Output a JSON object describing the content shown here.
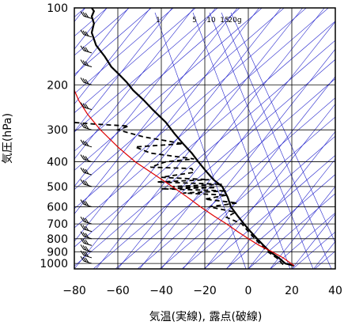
{
  "chart_data": {
    "type": "line",
    "title": "",
    "xlabel": "気温(実線), 露点(破線)",
    "ylabel": "気圧(hPa)",
    "x_ticks": [
      -80,
      -60,
      -40,
      -20,
      0,
      20,
      40
    ],
    "y_ticks": [
      100,
      200,
      300,
      400,
      500,
      600,
      700,
      800,
      900,
      1000
    ],
    "xlim": [
      -80,
      40
    ],
    "ylim": [
      1050,
      100
    ],
    "y_scale": "log",
    "mixing_ratio_labels": [
      "1",
      "5",
      "10",
      "15",
      "20g"
    ],
    "colors": {
      "temperature": "#000000",
      "dewpoint": "#000000",
      "parcel": "#e00000",
      "aux_lines": "#2222cc",
      "grid": "#000000",
      "wind": "#000000"
    },
    "series": [
      {
        "style": "solid",
        "points": [
          [
            21,
            1020
          ],
          [
            17,
            1000
          ],
          [
            14,
            950
          ],
          [
            10,
            900
          ],
          [
            7,
            850
          ],
          [
            4,
            800
          ],
          [
            1,
            750
          ],
          [
            -2,
            700
          ],
          [
            -5,
            650
          ],
          [
            -8,
            600
          ],
          [
            -9.5,
            550
          ],
          [
            -11,
            520
          ],
          [
            -12,
            500
          ],
          [
            -16,
            470
          ],
          [
            -19,
            440
          ],
          [
            -23,
            400
          ],
          [
            -26,
            370
          ],
          [
            -30,
            340
          ],
          [
            -34,
            310
          ],
          [
            -38,
            280
          ],
          [
            -44,
            250
          ],
          [
            -48,
            230
          ],
          [
            -53,
            210
          ],
          [
            -56,
            195
          ],
          [
            -60,
            180
          ],
          [
            -63,
            170
          ],
          [
            -66,
            155
          ],
          [
            -70,
            140
          ],
          [
            -72,
            125
          ],
          [
            -71,
            115
          ],
          [
            -72,
            108
          ],
          [
            -71,
            103
          ],
          [
            -72,
            100
          ]
        ]
      },
      {
        "style": "dashed",
        "points": [
          [
            16,
            1010
          ],
          [
            13,
            950
          ],
          [
            9,
            900
          ],
          [
            6,
            850
          ],
          [
            3,
            800
          ],
          [
            0,
            750
          ],
          [
            -3,
            700
          ],
          [
            -10,
            660
          ],
          [
            -6,
            630
          ],
          [
            -18,
            600
          ],
          [
            -5,
            580
          ],
          [
            -20,
            560
          ],
          [
            -10,
            540
          ],
          [
            -30,
            530
          ],
          [
            -10,
            520
          ],
          [
            -40,
            510
          ],
          [
            -15,
            505
          ],
          [
            -35,
            500
          ],
          [
            -12,
            490
          ],
          [
            -42,
            480
          ],
          [
            -18,
            470
          ],
          [
            -40,
            460
          ],
          [
            -25,
            440
          ],
          [
            -26,
            425
          ],
          [
            -45,
            420
          ],
          [
            -38,
            400
          ],
          [
            -25,
            390
          ],
          [
            -45,
            370
          ],
          [
            -52,
            350
          ],
          [
            -30,
            340
          ],
          [
            -48,
            320
          ],
          [
            -60,
            300
          ],
          [
            -55,
            290
          ],
          [
            -70,
            285
          ],
          [
            -82,
            280
          ]
        ]
      },
      {
        "style": "parcel",
        "points": [
          [
            21,
            1020
          ],
          [
            16,
            950
          ],
          [
            11,
            900
          ],
          [
            5,
            850
          ],
          [
            0,
            800
          ],
          [
            -5,
            750
          ],
          [
            -10,
            700
          ],
          [
            -16,
            650
          ],
          [
            -22,
            600
          ],
          [
            -28,
            550
          ],
          [
            -35,
            500
          ],
          [
            -43,
            450
          ],
          [
            -52,
            400
          ],
          [
            -60,
            350
          ],
          [
            -68,
            300
          ],
          [
            -74,
            260
          ],
          [
            -78,
            230
          ],
          [
            -80,
            210
          ]
        ]
      }
    ],
    "wind_barbs": [
      {
        "p": 1000,
        "x_side": -72
      },
      {
        "p": 950,
        "x_side": -72
      },
      {
        "p": 900,
        "x_side": -72
      },
      {
        "p": 850,
        "x_side": -72
      },
      {
        "p": 800,
        "x_side": -72
      },
      {
        "p": 750,
        "x_side": -72
      },
      {
        "p": 700,
        "x_side": -72
      },
      {
        "p": 600,
        "x_side": -72
      },
      {
        "p": 500,
        "x_side": -72
      },
      {
        "p": 450,
        "x_side": -72
      },
      {
        "p": 400,
        "x_side": -72
      },
      {
        "p": 350,
        "x_side": -72
      },
      {
        "p": 300,
        "x_side": -72
      },
      {
        "p": 250,
        "x_side": -72
      },
      {
        "p": 200,
        "x_side": -72
      },
      {
        "p": 170,
        "x_side": -72
      },
      {
        "p": 150,
        "x_side": -72
      },
      {
        "p": 130,
        "x_side": -72
      },
      {
        "p": 110,
        "x_side": -72
      }
    ]
  }
}
